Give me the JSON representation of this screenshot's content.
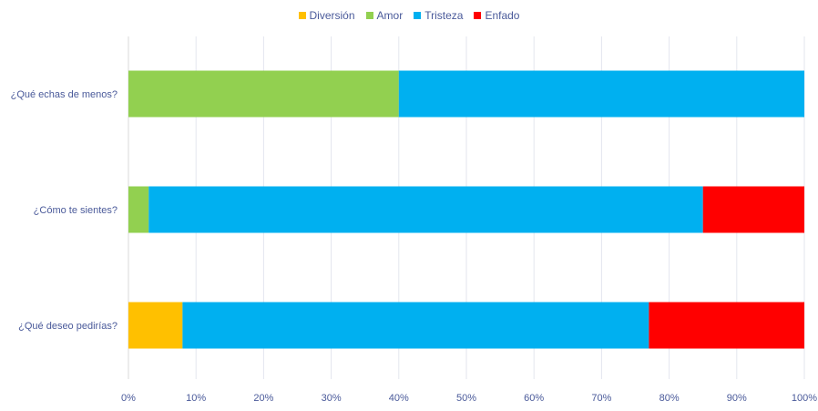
{
  "chart_data": {
    "type": "bar",
    "orientation": "horizontal",
    "stacked": true,
    "title": "",
    "xlabel": "",
    "ylabel": "",
    "categories": [
      "¿Qué echas de menos?",
      "¿Cómo te sientes?",
      "¿Qué deseo pedirías?"
    ],
    "series": [
      {
        "name": "Diversión",
        "color": "#FFC000",
        "values": [
          0,
          0,
          8
        ]
      },
      {
        "name": "Amor",
        "color": "#92D050",
        "values": [
          40,
          3,
          0
        ]
      },
      {
        "name": "Tristeza",
        "color": "#00B0F0",
        "values": [
          60,
          82,
          69
        ]
      },
      {
        "name": "Enfado",
        "color": "#FF0000",
        "values": [
          0,
          15,
          23
        ]
      }
    ],
    "xlim": [
      0,
      100
    ],
    "xticks": [
      0,
      10,
      20,
      30,
      40,
      50,
      60,
      70,
      80,
      90,
      100
    ],
    "xtick_labels": [
      "0%",
      "10%",
      "20%",
      "30%",
      "40%",
      "50%",
      "60%",
      "70%",
      "80%",
      "90%",
      "100%"
    ],
    "grid": true,
    "legend_position": "top"
  },
  "colors": {
    "label_text": "#4a5a9a",
    "gridline": "#e3e6ee",
    "axis_line": "#d9d9d9"
  }
}
